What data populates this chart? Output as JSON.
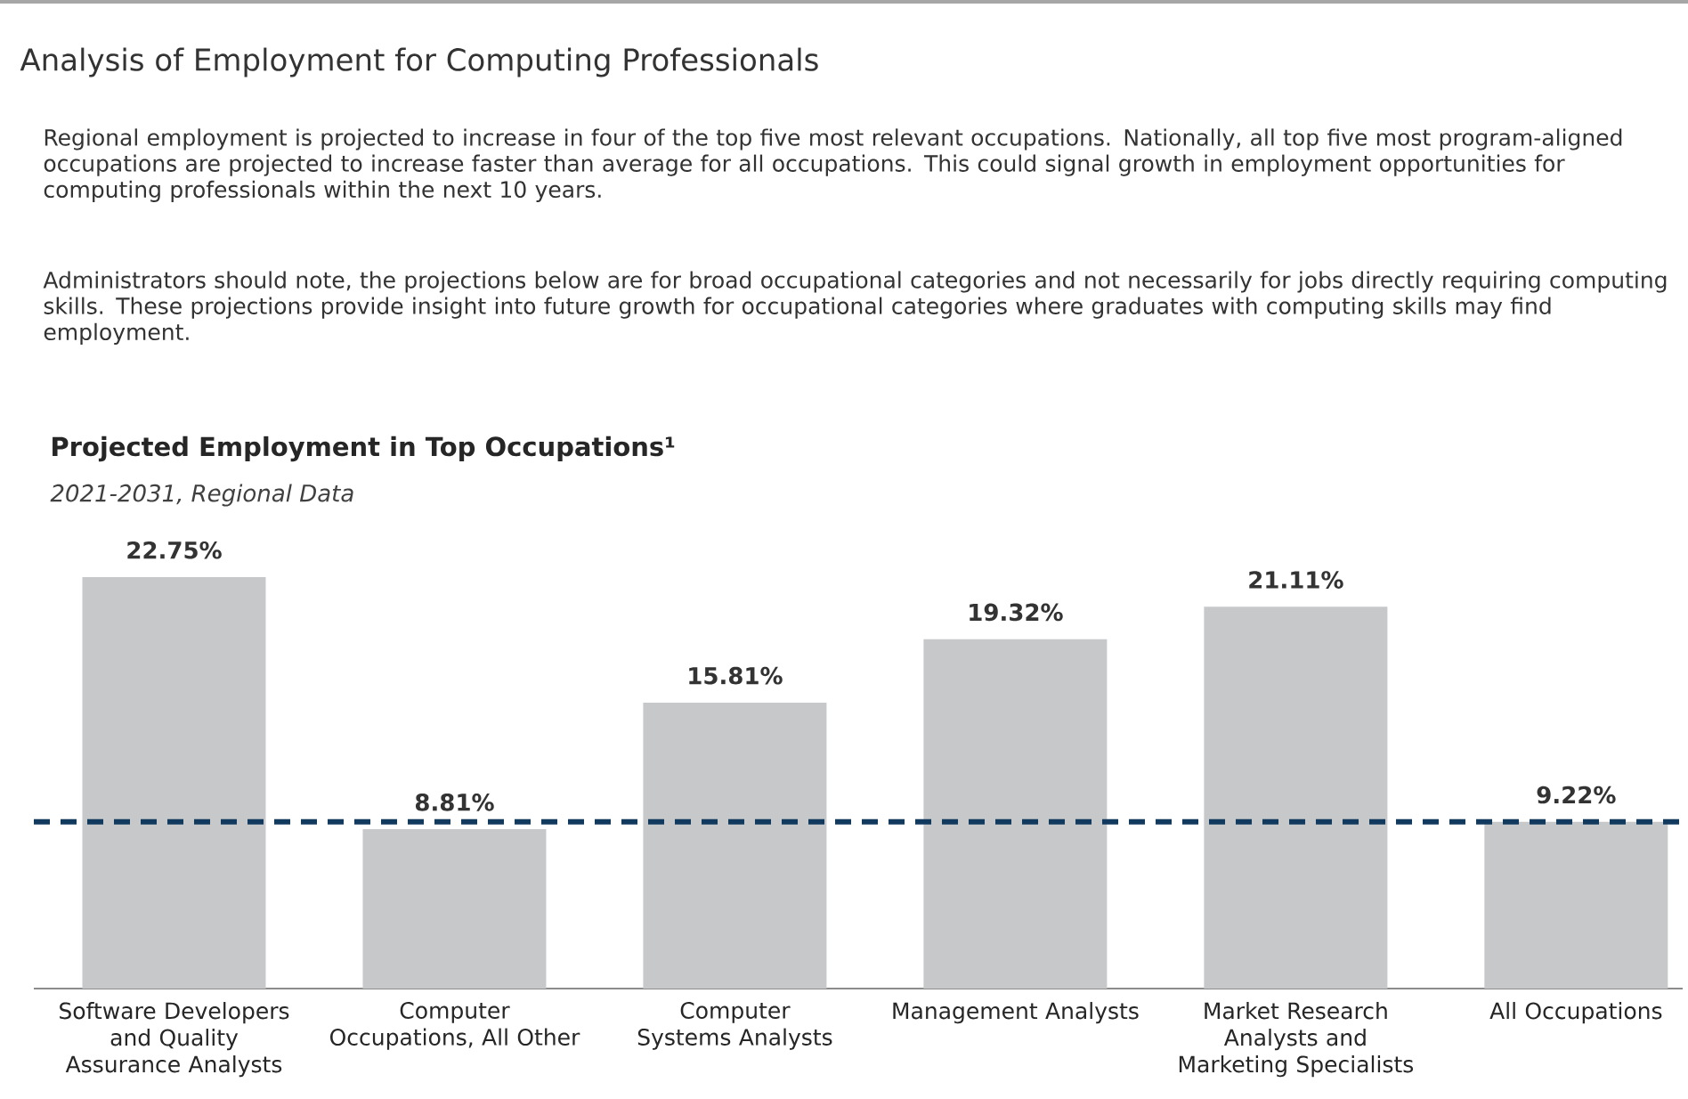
{
  "chart_data": {
    "type": "bar",
    "title": "Projected Employment in Top Occupations¹",
    "subtitle": "2021-2031, Regional Data",
    "annotations": [
      "Analysis of Employment for Computing Professionals",
      "Regional employment is projected to increase in four of the top five most relevant occupations. Nationally, all top five most program-aligned occupations are projected to increase faster than average for all occupations. This could signal growth in employment opportunities for computing professionals within the next 10 years.",
      "Administrators should note, the projections below are for broad occupational categories and not necessarily for jobs directly requiring computing skills. These projections provide insight into future growth for occupational categories where graduates with computing skills may find employment."
    ],
    "categories": [
      "Software Developers and Quality Assurance Analysts",
      "Computer Occupations, All Other",
      "Computer Systems Analysts",
      "Management Analysts",
      "Market Research Analysts and Marketing Specialists",
      "All Occupations"
    ],
    "values": [
      22.75,
      8.81,
      15.81,
      19.32,
      21.11,
      9.22
    ],
    "value_labels": [
      "22.75%",
      "8.81%",
      "15.81%",
      "19.32%",
      "21.11%",
      "9.22%"
    ],
    "color": "#c6c8ca",
    "ref_lines": [
      {
        "axis": "y",
        "value": 9.22,
        "color": "#123a5e",
        "line_style": "dashed"
      }
    ]
  }
}
